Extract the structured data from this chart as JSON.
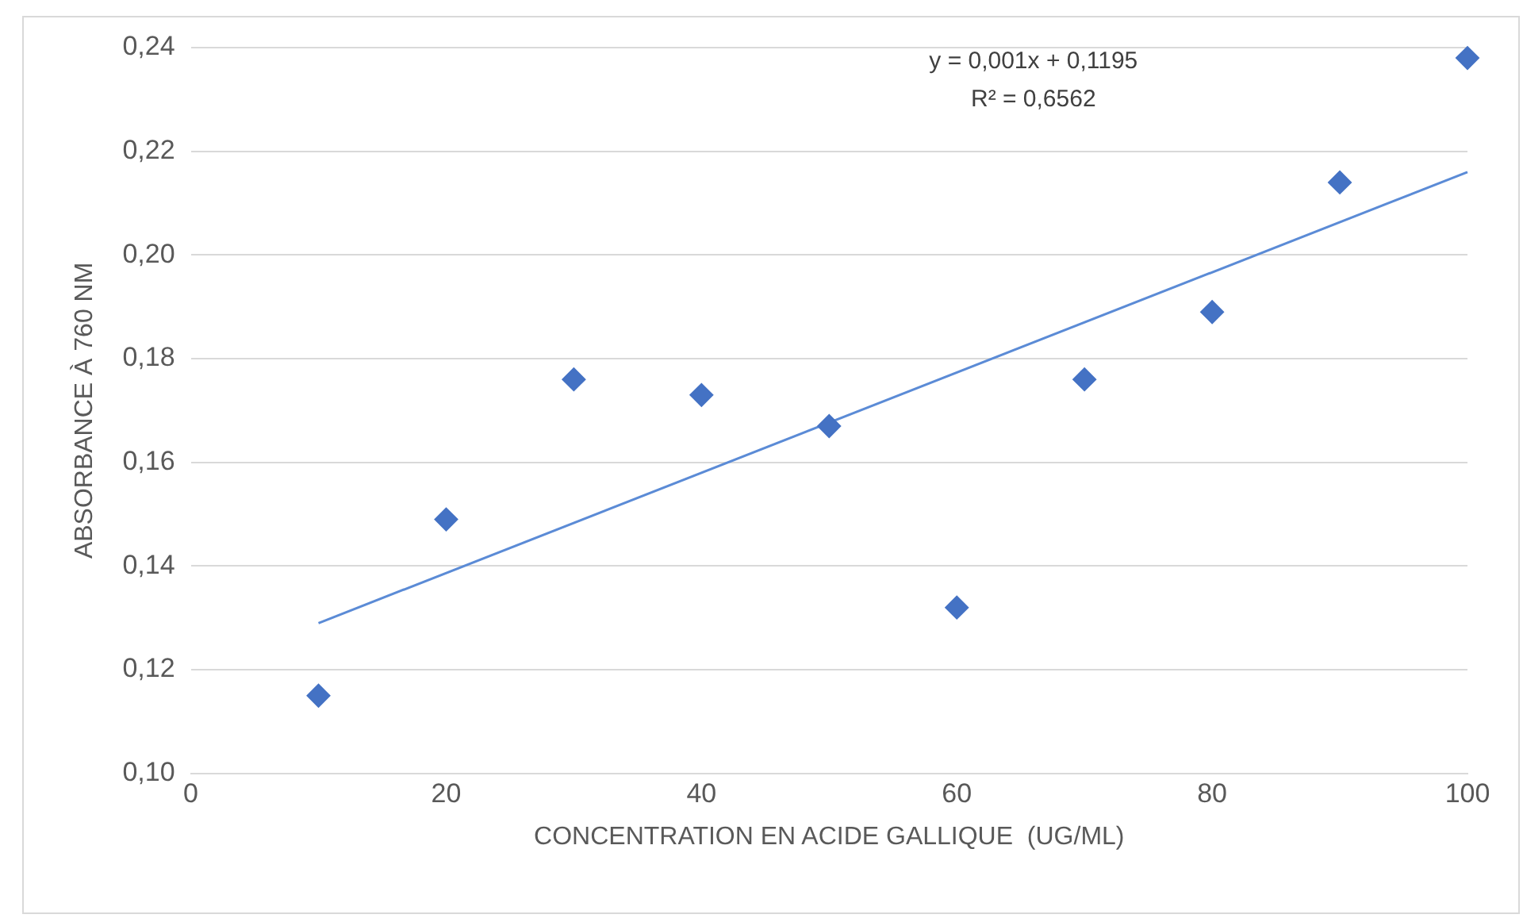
{
  "chart_data": {
    "type": "scatter",
    "xlabel": "CONCENTRATION EN ACIDE GALLIQUE  (UG/ML)",
    "ylabel": "ABSORBANCE À 760 NM",
    "series": [
      {
        "color": "#4472c4",
        "marker": "diamond",
        "x": [
          10,
          20,
          30,
          40,
          50,
          60,
          70,
          80,
          90,
          100
        ],
        "values": [
          0.115,
          0.149,
          0.176,
          0.173,
          0.167,
          0.132,
          0.176,
          0.189,
          0.214,
          0.238
        ]
      },
      {
        "type": "line",
        "color": "#5b8bd6",
        "marker": "none",
        "x": [
          10,
          100
        ],
        "values": [
          0.129,
          0.216
        ]
      }
    ],
    "xlim": [
      0,
      100
    ],
    "xticks": [
      0,
      20,
      40,
      60,
      80,
      100
    ],
    "ylim": [
      0.1,
      0.24
    ],
    "yticks": [
      {
        "value": 0.1,
        "label": "0,10"
      },
      {
        "value": 0.12,
        "label": "0,12"
      },
      {
        "value": 0.14,
        "label": "0,14"
      },
      {
        "value": 0.16,
        "label": "0,16"
      },
      {
        "value": 0.18,
        "label": "0,18"
      },
      {
        "value": 0.2,
        "label": "0,20"
      },
      {
        "value": 0.22,
        "label": "0,22"
      },
      {
        "value": 0.24,
        "label": "0,24"
      }
    ],
    "grid": "y",
    "line_style": "solid",
    "legend": false,
    "annotations": [
      "y = 0,001x + 0,1195",
      "R² = 0,6562"
    ]
  }
}
